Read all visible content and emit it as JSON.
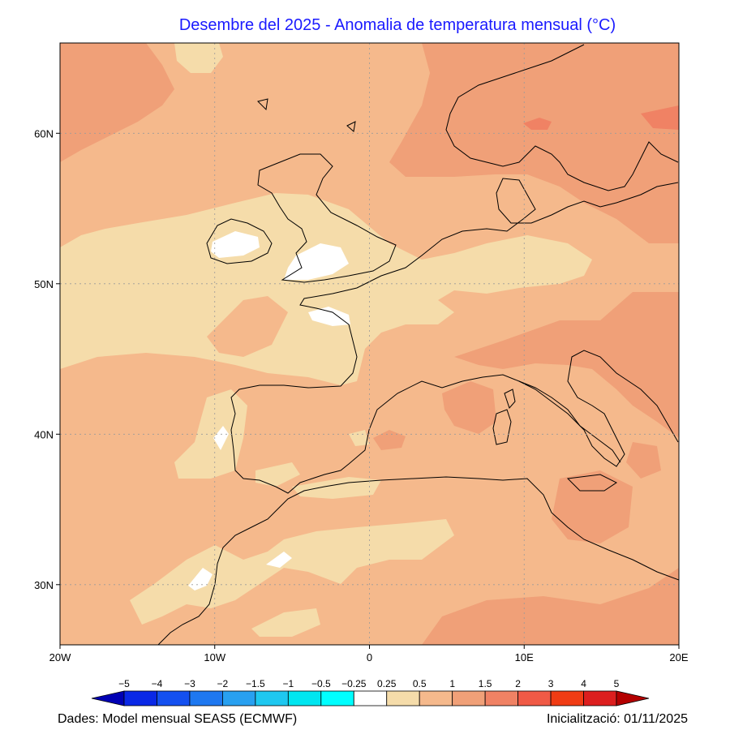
{
  "title": "Desembre del 2025 - Anomalia de temperatura mensual (°C)",
  "map": {
    "lon_range": [
      -20,
      20
    ],
    "lat_range": [
      26,
      66
    ],
    "x_ticks": [
      {
        "value": -20,
        "label": "20W"
      },
      {
        "value": -10,
        "label": "10W"
      },
      {
        "value": 0,
        "label": "0"
      },
      {
        "value": 10,
        "label": "10E"
      },
      {
        "value": 20,
        "label": "20E"
      }
    ],
    "y_ticks": [
      {
        "value": 60,
        "label": "60N"
      },
      {
        "value": 50,
        "label": "50N"
      },
      {
        "value": 40,
        "label": "40N"
      },
      {
        "value": 30,
        "label": "30N"
      }
    ],
    "grid": "dotted"
  },
  "colorbar": {
    "labels": [
      "−5",
      "−4",
      "−3",
      "−2",
      "−1.5",
      "−1",
      "−0.5",
      "−0.25",
      "0.25",
      "0.5",
      "1",
      "1.5",
      "2",
      "3",
      "4",
      "5"
    ],
    "colors": [
      "#0000b4",
      "#0a28e6",
      "#1450f0",
      "#1e78f0",
      "#28a0f0",
      "#1ec8f0",
      "#00e6f0",
      "#00ffff",
      "#ffffff",
      "#f5dcaa",
      "#f5b98c",
      "#f0a078",
      "#f08264",
      "#f05a46",
      "#f03c14",
      "#dc1e1e",
      "#b40000"
    ]
  },
  "footer": {
    "source": "Dades: Model mensual SEAS5 (ECMWF)",
    "init": "Inicialització: 01/11/2025"
  }
}
